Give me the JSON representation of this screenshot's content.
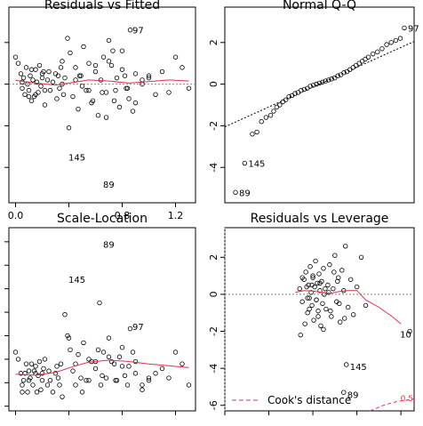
{
  "chart_data": [
    {
      "id": "rf",
      "type": "scatter",
      "title": "Residuals vs Fitted",
      "xlim": [
        -0.05,
        1.35
      ],
      "ylim": [
        -5.7,
        3.7
      ],
      "xticks": [
        0.0,
        0.4,
        0.8,
        1.2
      ],
      "xtick_labels": [
        "0.0",
        "",
        "0.8",
        "1.2"
      ],
      "yticks": [
        -4,
        -2,
        0,
        2
      ],
      "ytick_labels": [
        "",
        "",
        "",
        ""
      ],
      "show_xaxis": true,
      "show_yaxis": true,
      "refline": {
        "type": "h",
        "value": 0,
        "dash": true
      },
      "smooth": {
        "x": [
          0.0,
          0.15,
          0.3,
          0.45,
          0.55,
          0.7,
          0.85,
          1.0,
          1.15,
          1.3
        ],
        "y": [
          0.18,
          0.05,
          -0.05,
          0.1,
          0.2,
          0.15,
          0.05,
          0.12,
          0.2,
          0.15
        ]
      },
      "labels": [
        {
          "x": 0.85,
          "y": 2.6,
          "text": "97"
        },
        {
          "x": 0.37,
          "y": -3.5,
          "text": "145"
        },
        {
          "x": 0.63,
          "y": -4.8,
          "text": "89"
        }
      ],
      "points": {
        "x": [
          0.0,
          0.02,
          0.04,
          0.05,
          0.06,
          0.07,
          0.08,
          0.09,
          0.1,
          0.11,
          0.12,
          0.13,
          0.14,
          0.15,
          0.16,
          0.17,
          0.18,
          0.19,
          0.2,
          0.21,
          0.22,
          0.24,
          0.26,
          0.28,
          0.3,
          0.31,
          0.32,
          0.33,
          0.34,
          0.35,
          0.36,
          0.37,
          0.39,
          0.41,
          0.43,
          0.45,
          0.47,
          0.49,
          0.51,
          0.53,
          0.55,
          0.57,
          0.6,
          0.62,
          0.64,
          0.66,
          0.68,
          0.7,
          0.72,
          0.74,
          0.76,
          0.78,
          0.8,
          0.82,
          0.84,
          0.86,
          0.88,
          0.9,
          0.95,
          1.0,
          1.05,
          1.1,
          1.15,
          1.2,
          1.25,
          1.3,
          0.05,
          0.1,
          0.2,
          0.5,
          0.6,
          0.75,
          0.8,
          0.9,
          1.0,
          0.15,
          0.25,
          0.45,
          0.55,
          0.7,
          0.85,
          0.95,
          0.4,
          0.65,
          0.35,
          0.58,
          0.73,
          0.83,
          0.12,
          0.22,
          0.48,
          0.68
        ],
        "y": [
          1.3,
          1.0,
          0.5,
          -0.2,
          0.3,
          -0.5,
          0.8,
          0.0,
          -0.3,
          0.4,
          -0.8,
          0.2,
          -0.6,
          0.7,
          0.1,
          -0.4,
          0.9,
          -0.1,
          0.3,
          0.6,
          -1.0,
          0.2,
          -0.3,
          0.1,
          0.5,
          -0.7,
          0.4,
          -0.2,
          0.8,
          0.0,
          -0.5,
          0.3,
          2.2,
          1.5,
          -0.6,
          0.8,
          -1.2,
          0.4,
          1.8,
          -0.3,
          1.0,
          -0.9,
          0.6,
          -1.5,
          0.2,
          1.3,
          -0.4,
          2.1,
          0.9,
          -0.8,
          0.3,
          -1.1,
          1.6,
          0.4,
          -0.2,
          2.6,
          -1.3,
          0.5,
          0.0,
          0.3,
          -0.5,
          0.6,
          -0.4,
          1.3,
          0.8,
          -0.2,
          0.1,
          -0.6,
          0.5,
          -0.1,
          0.9,
          -0.3,
          0.7,
          -0.9,
          0.4,
          -0.5,
          0.6,
          0.2,
          -0.3,
          1.1,
          -0.7,
          0.2,
          -2.1,
          -0.4,
          1.1,
          -0.8,
          1.6,
          -0.2,
          0.7,
          -0.3,
          0.4,
          -1.6
        ]
      }
    },
    {
      "id": "qq",
      "type": "scatter",
      "title": "Normal Q-Q",
      "xlim": [
        -3.1,
        3.1
      ],
      "ylim": [
        -5.7,
        3.7
      ],
      "xticks": [
        -2,
        -1,
        0,
        1,
        2
      ],
      "xtick_labels": [
        "",
        "",
        "",
        "",
        ""
      ],
      "yticks": [
        -4,
        -2,
        0,
        2
      ],
      "ytick_labels": [
        "-4",
        "-2",
        "0",
        "2"
      ],
      "show_xaxis": false,
      "show_yaxis": true,
      "refline": {
        "type": "line",
        "x": [
          -3.1,
          3.1
        ],
        "y": [
          -2.05,
          2.05
        ],
        "dash": true
      },
      "labels": [
        {
          "x": 2.78,
          "y": 2.7,
          "text": "97"
        },
        {
          "x": -2.45,
          "y": -3.8,
          "text": "145"
        },
        {
          "x": -2.75,
          "y": -5.2,
          "text": "89"
        }
      ],
      "points": {
        "x": [
          -2.75,
          -2.45,
          -2.2,
          -2.05,
          -1.9,
          -1.75,
          -1.6,
          -1.5,
          -1.4,
          -1.3,
          -1.2,
          -1.1,
          -1.0,
          -0.9,
          -0.8,
          -0.7,
          -0.6,
          -0.5,
          -0.4,
          -0.3,
          -0.2,
          -0.1,
          0.0,
          0.1,
          0.2,
          0.3,
          0.4,
          0.5,
          0.6,
          0.7,
          0.8,
          0.9,
          1.0,
          1.1,
          1.2,
          1.3,
          1.4,
          1.5,
          1.6,
          1.75,
          1.9,
          2.05,
          2.2,
          2.35,
          2.5,
          2.65,
          2.78
        ],
        "y": [
          -5.2,
          -3.8,
          -2.4,
          -2.3,
          -1.8,
          -1.6,
          -1.5,
          -1.3,
          -1.1,
          -1.0,
          -0.85,
          -0.75,
          -0.6,
          -0.55,
          -0.45,
          -0.4,
          -0.3,
          -0.25,
          -0.2,
          -0.1,
          -0.05,
          0.0,
          0.05,
          0.1,
          0.15,
          0.2,
          0.25,
          0.3,
          0.4,
          0.45,
          0.55,
          0.6,
          0.7,
          0.8,
          0.9,
          1.0,
          1.1,
          1.2,
          1.3,
          1.45,
          1.55,
          1.7,
          1.9,
          2.0,
          2.1,
          2.2,
          2.7
        ]
      }
    },
    {
      "id": "sl",
      "type": "scatter",
      "title": "Scale-Location",
      "xlim": [
        -0.05,
        1.35
      ],
      "ylim": [
        -0.1,
        3.8
      ],
      "xticks": [
        0.0,
        0.4,
        0.8,
        1.2
      ],
      "xtick_labels": [
        "",
        "",
        "",
        ""
      ],
      "yticks": [
        0.0,
        0.5,
        1.0,
        1.5,
        2.0,
        2.5,
        3.0,
        3.5
      ],
      "ytick_labels": [
        "",
        "",
        "",
        "",
        "",
        "",
        "",
        ""
      ],
      "show_xaxis": true,
      "show_yaxis": true,
      "refline": null,
      "smooth": {
        "x": [
          0.0,
          0.15,
          0.3,
          0.45,
          0.55,
          0.7,
          0.85,
          1.0,
          1.15,
          1.3
        ],
        "y": [
          0.68,
          0.66,
          0.72,
          0.86,
          0.94,
          0.98,
          0.95,
          0.9,
          0.86,
          0.82
        ]
      },
      "labels": [
        {
          "x": 0.63,
          "y": 3.45,
          "text": "89"
        },
        {
          "x": 0.37,
          "y": 2.7,
          "text": "145"
        },
        {
          "x": 0.85,
          "y": 1.7,
          "text": "97"
        }
      ],
      "points": {
        "x": [
          0.0,
          0.02,
          0.04,
          0.05,
          0.06,
          0.07,
          0.08,
          0.09,
          0.1,
          0.11,
          0.12,
          0.13,
          0.14,
          0.15,
          0.16,
          0.17,
          0.18,
          0.19,
          0.2,
          0.21,
          0.22,
          0.24,
          0.26,
          0.28,
          0.3,
          0.31,
          0.32,
          0.33,
          0.34,
          0.35,
          0.39,
          0.41,
          0.43,
          0.45,
          0.47,
          0.49,
          0.51,
          0.53,
          0.55,
          0.57,
          0.6,
          0.62,
          0.64,
          0.66,
          0.68,
          0.7,
          0.72,
          0.74,
          0.76,
          0.78,
          0.8,
          0.82,
          0.84,
          0.86,
          0.88,
          0.9,
          0.95,
          1.0,
          1.05,
          1.1,
          1.15,
          1.2,
          1.25,
          1.3,
          0.05,
          0.1,
          0.2,
          0.5,
          0.6,
          0.75,
          0.8,
          0.9,
          1.0,
          0.15,
          0.25,
          0.45,
          0.55,
          0.7,
          0.85,
          0.95,
          0.4,
          0.65,
          0.37,
          0.63
        ],
        "y": [
          1.15,
          1.0,
          0.7,
          0.45,
          0.55,
          0.7,
          0.9,
          0.3,
          0.55,
          0.6,
          0.9,
          0.45,
          0.75,
          0.85,
          0.3,
          0.65,
          0.95,
          0.35,
          0.55,
          0.8,
          1.0,
          0.45,
          0.55,
          0.3,
          0.7,
          0.85,
          0.6,
          0.45,
          0.9,
          0.2,
          1.5,
          1.2,
          0.75,
          0.9,
          1.1,
          0.6,
          1.35,
          0.55,
          1.0,
          0.95,
          0.8,
          1.2,
          0.45,
          1.15,
          0.6,
          1.45,
          0.95,
          0.9,
          0.55,
          1.05,
          1.25,
          0.65,
          0.45,
          1.65,
          1.15,
          0.7,
          0.35,
          0.55,
          0.7,
          0.8,
          0.6,
          1.15,
          0.9,
          0.45,
          0.3,
          0.75,
          0.7,
          0.3,
          0.95,
          0.55,
          0.85,
          0.95,
          0.6,
          0.7,
          0.75,
          0.45,
          0.55,
          1.05,
          0.85,
          0.45,
          1.45,
          0.65,
          1.95,
          2.2
        ]
      }
    },
    {
      "id": "rl",
      "type": "scatter",
      "title": "Residuals vs Leverage",
      "xlim": [
        0.0,
        0.215
      ],
      "ylim": [
        -6.3,
        3.6
      ],
      "xticks": [
        0.0,
        0.05,
        0.1,
        0.15,
        0.2
      ],
      "xtick_labels": [
        "",
        "",
        "",
        "",
        ""
      ],
      "yticks": [
        -6,
        -4,
        -2,
        0,
        2
      ],
      "ytick_labels": [
        "-6",
        "-4",
        "-2",
        "0",
        "2"
      ],
      "show_xaxis": true,
      "show_yaxis": true,
      "refline": {
        "type": "hv",
        "h": 0,
        "v": 0,
        "dash": true
      },
      "smooth": {
        "x": [
          0.08,
          0.09,
          0.1,
          0.11,
          0.12,
          0.13,
          0.14,
          0.15,
          0.16,
          0.175,
          0.19,
          0.2
        ],
        "y": [
          0.1,
          0.2,
          0.18,
          0.1,
          0.05,
          0.15,
          0.2,
          0.2,
          -0.3,
          -0.7,
          -1.2,
          -1.6
        ]
      },
      "cooks": {
        "x": [
          0.165,
          0.18,
          0.195,
          0.215
        ],
        "y": [
          -6.3,
          -6.0,
          -5.8,
          -5.65
        ]
      },
      "cooks_label": "0.5",
      "legend": {
        "label": "Cook's distance",
        "position": "bottom-left"
      },
      "labels": [
        {
          "x": 0.195,
          "y": -2.15,
          "text": "10"
        },
        {
          "x": 0.138,
          "y": -3.9,
          "text": "145"
        },
        {
          "x": 0.135,
          "y": -5.4,
          "text": "89"
        }
      ],
      "points": {
        "x": [
          0.085,
          0.088,
          0.09,
          0.092,
          0.094,
          0.095,
          0.096,
          0.097,
          0.098,
          0.099,
          0.1,
          0.101,
          0.102,
          0.103,
          0.104,
          0.105,
          0.106,
          0.107,
          0.108,
          0.109,
          0.11,
          0.111,
          0.112,
          0.113,
          0.115,
          0.117,
          0.119,
          0.121,
          0.123,
          0.125,
          0.127,
          0.129,
          0.131,
          0.133,
          0.135,
          0.137,
          0.14,
          0.143,
          0.146,
          0.15,
          0.155,
          0.16,
          0.21,
          0.086,
          0.091,
          0.093,
          0.096,
          0.1,
          0.104,
          0.108,
          0.112,
          0.118,
          0.124,
          0.13,
          0.088,
          0.094,
          0.099,
          0.106,
          0.114,
          0.12,
          0.128,
          0.136,
          0.135,
          0.138
        ],
        "y": [
          0.3,
          -0.4,
          0.8,
          1.2,
          -1.0,
          0.5,
          -0.2,
          1.5,
          0.1,
          -0.6,
          0.9,
          -1.4,
          0.4,
          1.8,
          -0.3,
          0.6,
          -0.9,
          1.1,
          0.2,
          -1.7,
          0.7,
          -0.5,
          1.4,
          0.0,
          -0.8,
          0.5,
          1.6,
          -1.2,
          0.3,
          2.1,
          -0.4,
          0.9,
          -1.5,
          1.3,
          0.2,
          2.6,
          -0.7,
          0.8,
          -1.1,
          0.4,
          2.0,
          -0.6,
          -2.0,
          -2.2,
          -1.6,
          0.4,
          -0.8,
          1.0,
          -0.3,
          0.6,
          -1.9,
          0.1,
          1.2,
          -0.5,
          0.9,
          -0.2,
          0.5,
          -1.2,
          0.3,
          -0.9,
          0.7,
          -1.3,
          -5.3,
          -3.8
        ]
      }
    }
  ]
}
